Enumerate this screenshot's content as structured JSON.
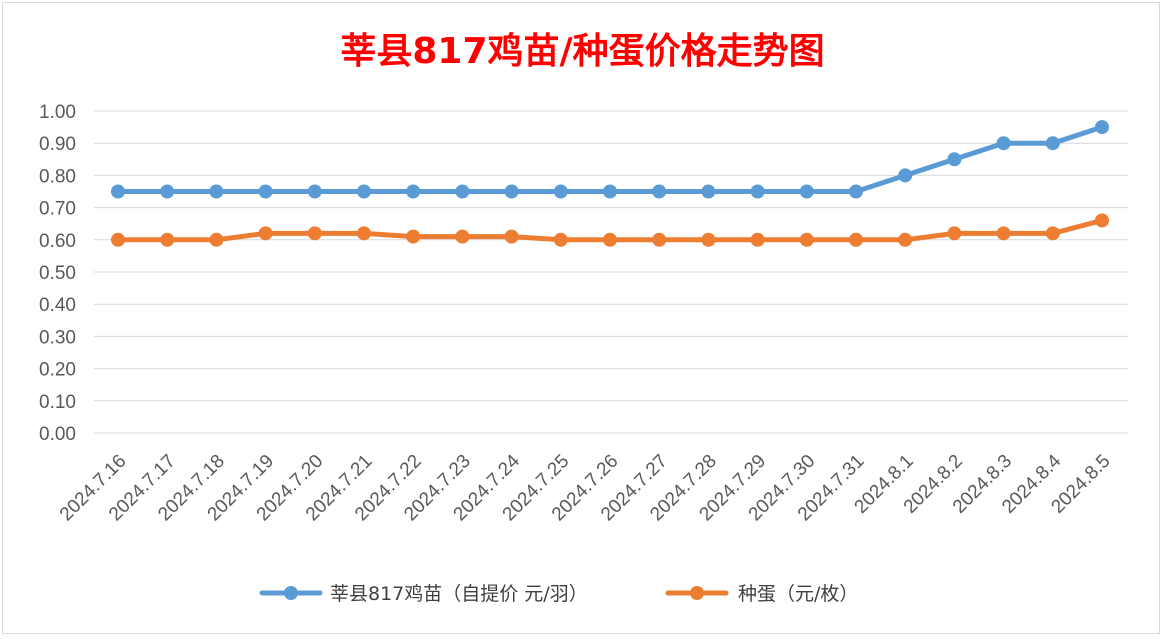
{
  "chart_data": {
    "type": "line",
    "title": "莘县817鸡苗/种蛋价格走势图",
    "categories": [
      "2024.7.16",
      "2024.7.17",
      "2024.7.18",
      "2024.7.19",
      "2024.7.20",
      "2024.7.21",
      "2024.7.22",
      "2024.7.23",
      "2024.7.24",
      "2024.7.25",
      "2024.7.26",
      "2024.7.27",
      "2024.7.28",
      "2024.7.29",
      "2024.7.30",
      "2024.7.31",
      "2024.8.1",
      "2024.8.2",
      "2024.8.3",
      "2024.8.4",
      "2024.8.5"
    ],
    "series": [
      {
        "name": "莘县817鸡苗（自提价 元/羽）",
        "color": "#5b9bd5",
        "values": [
          0.75,
          0.75,
          0.75,
          0.75,
          0.75,
          0.75,
          0.75,
          0.75,
          0.75,
          0.75,
          0.75,
          0.75,
          0.75,
          0.75,
          0.75,
          0.75,
          0.8,
          0.85,
          0.9,
          0.9,
          0.95
        ]
      },
      {
        "name": "种蛋（元/枚）",
        "color": "#ed7d31",
        "values": [
          0.6,
          0.6,
          0.6,
          0.62,
          0.62,
          0.62,
          0.61,
          0.61,
          0.61,
          0.6,
          0.6,
          0.6,
          0.6,
          0.6,
          0.6,
          0.6,
          0.6,
          0.62,
          0.62,
          0.62,
          0.66
        ]
      }
    ],
    "ylim": [
      0,
      1.0
    ],
    "yticks": [
      "0.00",
      "0.10",
      "0.20",
      "0.30",
      "0.40",
      "0.50",
      "0.60",
      "0.70",
      "0.80",
      "0.90",
      "1.00"
    ],
    "grid": true,
    "legend_position": "bottom"
  }
}
